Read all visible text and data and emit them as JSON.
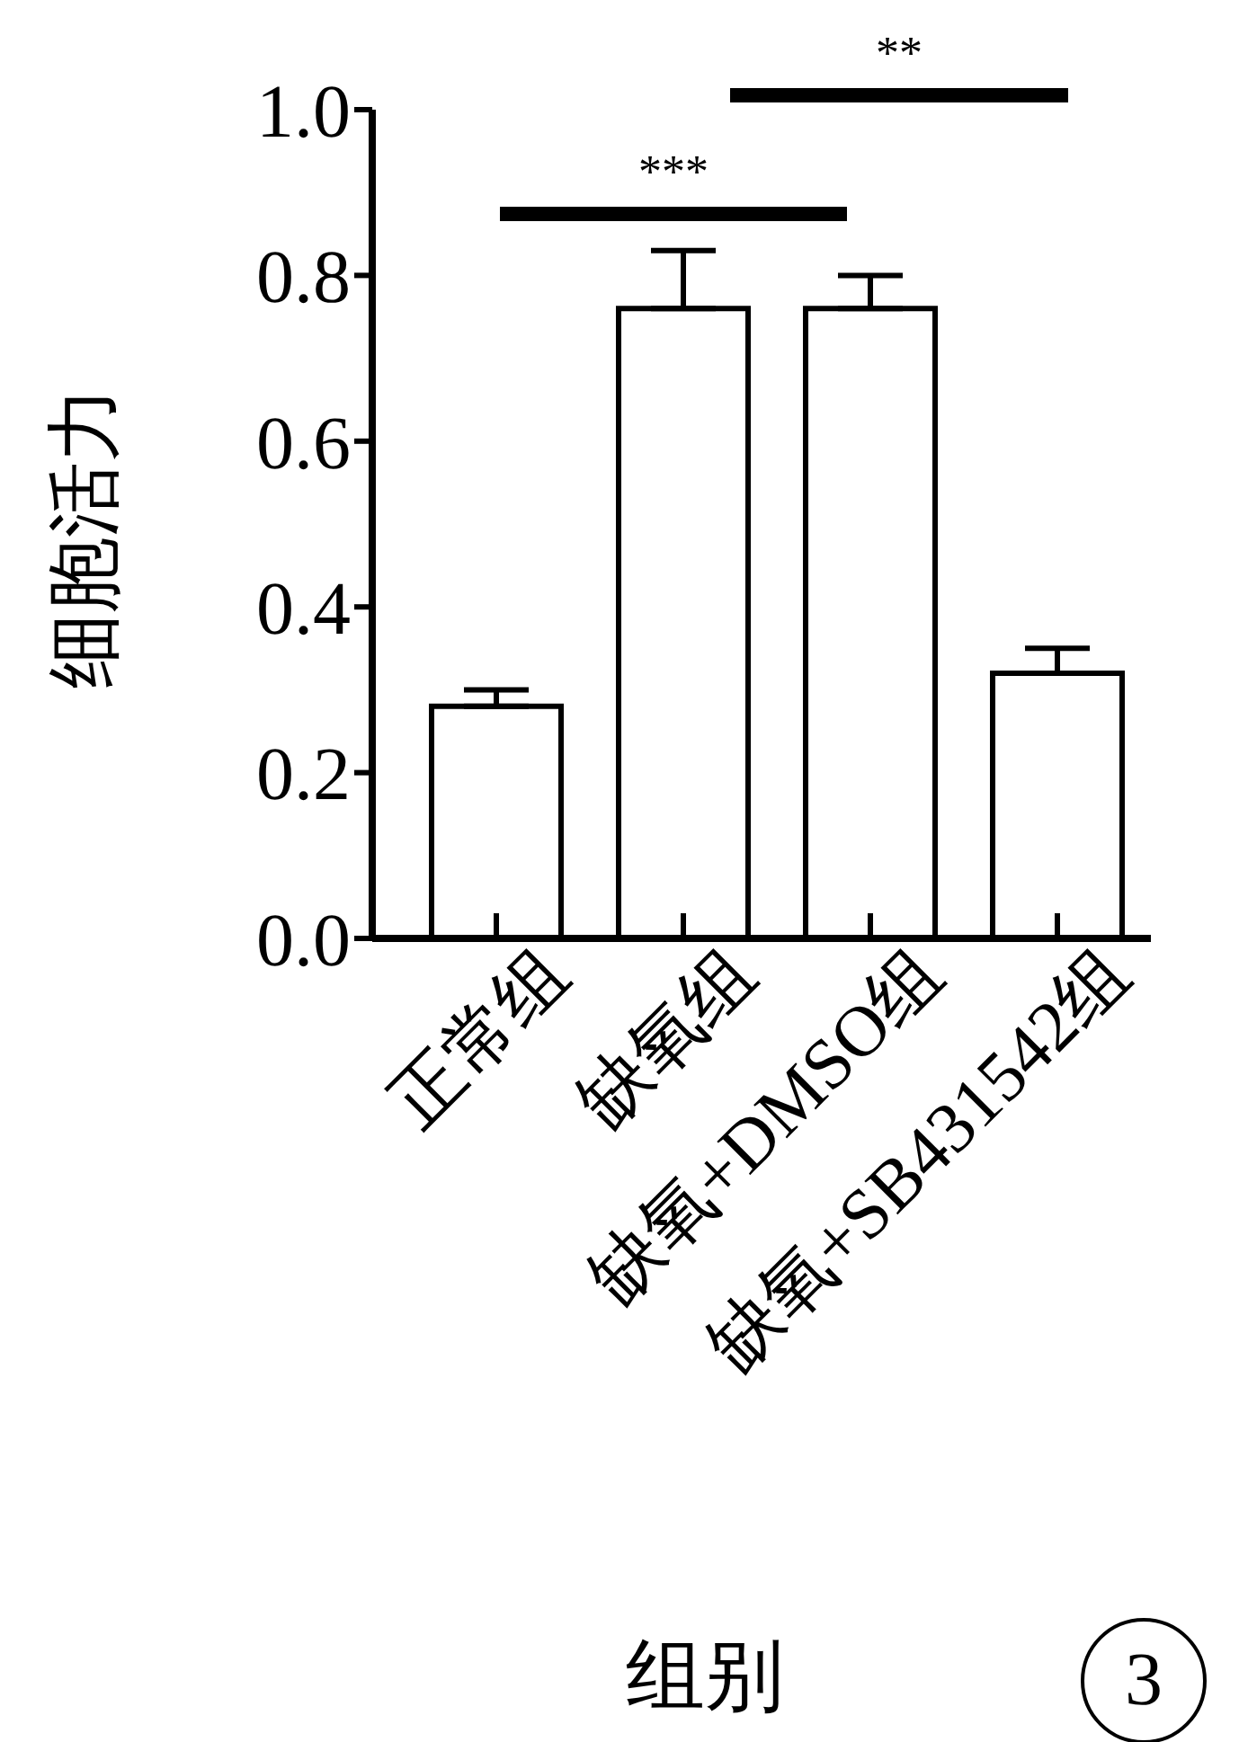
{
  "chart_data": {
    "type": "bar",
    "ylabel": "细胞活力",
    "xlabel": "组别",
    "categories": [
      "正常组",
      "缺氧组",
      "缺氧+DMSO组",
      "缺氧+SB431542组"
    ],
    "values": [
      0.28,
      0.76,
      0.76,
      0.32
    ],
    "errors": [
      [
        0.28,
        0.3
      ],
      [
        0.76,
        0.83
      ],
      [
        0.76,
        0.8
      ],
      [
        0.32,
        0.35
      ]
    ],
    "color": "#ffffff",
    "ylim": [
      0,
      1
    ],
    "yticks": [
      {
        "value": 0,
        "label": "0.0"
      },
      {
        "value": 0.2,
        "label": "0.2"
      },
      {
        "value": 0.4,
        "label": "0.4"
      },
      {
        "value": 0.6,
        "label": "0.6"
      },
      {
        "value": 0.8,
        "label": "0.8"
      },
      {
        "value": 1,
        "label": "1.0"
      }
    ],
    "grid": false,
    "legend": false,
    "annotations": [
      "***",
      "**",
      "3"
    ]
  }
}
